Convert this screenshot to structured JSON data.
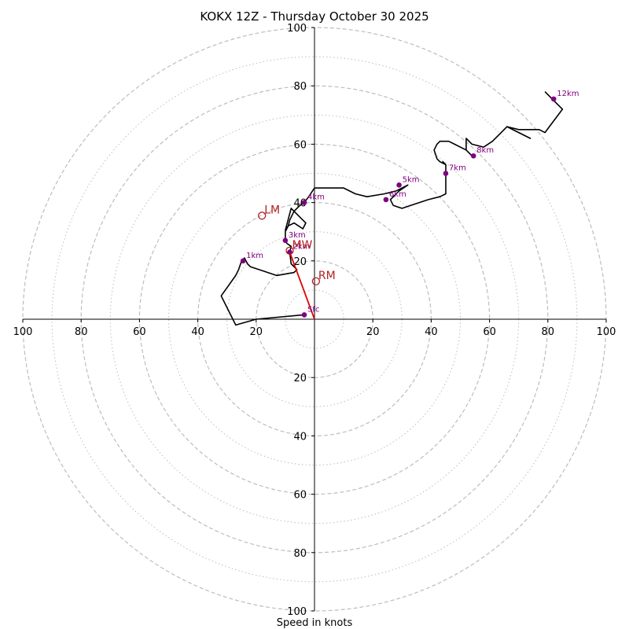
{
  "chart_data": {
    "type": "hodograph",
    "title": "KOKX 12Z - Thursday October 30 2025",
    "xlabel": "Speed in knots",
    "units": "knots",
    "range": [
      -100,
      100
    ],
    "ring_major": [
      20,
      40,
      60,
      80,
      100
    ],
    "ring_minor": [
      10,
      30,
      50,
      70,
      90
    ],
    "x_tick_labels": [
      "100",
      "80",
      "60",
      "40",
      "20",
      "20",
      "40",
      "60",
      "80",
      "100"
    ],
    "x_tick_values": [
      -100,
      -80,
      -60,
      -40,
      -20,
      20,
      40,
      60,
      80,
      100
    ],
    "y_tick_labels": [
      "100",
      "80",
      "60",
      "40",
      "20",
      "20",
      "40",
      "60",
      "80",
      "100"
    ],
    "y_tick_values": [
      100,
      80,
      60,
      40,
      20,
      -20,
      -40,
      -60,
      -80,
      -100
    ],
    "trace": [
      [
        -3.5,
        1.5
      ],
      [
        -20,
        0
      ],
      [
        -27,
        -2
      ],
      [
        -32,
        8
      ],
      [
        -27,
        15
      ],
      [
        -26,
        17
      ],
      [
        -25,
        20
      ],
      [
        -24,
        21
      ],
      [
        -23,
        19
      ],
      [
        -22,
        18
      ],
      [
        -19,
        17
      ],
      [
        -13,
        15
      ],
      [
        -7,
        16
      ],
      [
        -6,
        17
      ],
      [
        -8,
        19
      ],
      [
        -8.5,
        23
      ],
      [
        -8,
        25
      ],
      [
        -9.5,
        26
      ],
      [
        -10,
        27
      ],
      [
        -10,
        30
      ],
      [
        -9,
        32
      ],
      [
        -7,
        33
      ],
      [
        -4,
        31
      ],
      [
        -3,
        33
      ],
      [
        -4,
        34
      ],
      [
        -6,
        36
      ],
      [
        -8,
        38
      ],
      [
        -10,
        30.5
      ],
      [
        -9,
        32
      ],
      [
        -8.5,
        34
      ],
      [
        -7,
        37
      ],
      [
        -5,
        39
      ],
      [
        -3.5,
        40
      ],
      [
        -2,
        42
      ],
      [
        0,
        45
      ],
      [
        5,
        45
      ],
      [
        10,
        45
      ],
      [
        14,
        43
      ],
      [
        18,
        42
      ],
      [
        24,
        43
      ],
      [
        28,
        44
      ],
      [
        30,
        45
      ],
      [
        32,
        46
      ],
      [
        29,
        44
      ],
      [
        26,
        41
      ],
      [
        27,
        39
      ],
      [
        30,
        38
      ],
      [
        33,
        39
      ],
      [
        39,
        41
      ],
      [
        43,
        42
      ],
      [
        45,
        43
      ],
      [
        45,
        48
      ],
      [
        45,
        50
      ],
      [
        45,
        53
      ],
      [
        44,
        54
      ],
      [
        45,
        53
      ],
      [
        43,
        54
      ],
      [
        42,
        55
      ],
      [
        41,
        58
      ],
      [
        42,
        60
      ],
      [
        43,
        61
      ],
      [
        46,
        61
      ],
      [
        48,
        60
      ],
      [
        52,
        58
      ],
      [
        54,
        56
      ],
      [
        52,
        58
      ],
      [
        52,
        62
      ],
      [
        54,
        60
      ],
      [
        58,
        59
      ],
      [
        61,
        61
      ],
      [
        66,
        66
      ],
      [
        70,
        64
      ],
      [
        74,
        62
      ],
      [
        66,
        66
      ],
      [
        70,
        65
      ],
      [
        75,
        65
      ],
      [
        77,
        65
      ],
      [
        79,
        64
      ],
      [
        85,
        72
      ],
      [
        82,
        75
      ],
      [
        79,
        78
      ]
    ],
    "heights": [
      {
        "label": "Sfc",
        "u": -3.5,
        "v": 1.5
      },
      {
        "label": "1km",
        "u": -24.5,
        "v": 20
      },
      {
        "label": "2km",
        "u": -8.5,
        "v": 23
      },
      {
        "label": "3km",
        "u": -10,
        "v": 27
      },
      {
        "label": "4km",
        "u": -3.5,
        "v": 40
      },
      {
        "label": "5km",
        "u": 29,
        "v": 46
      },
      {
        "label": "6km",
        "u": 24.5,
        "v": 41
      },
      {
        "label": "7km",
        "u": 45,
        "v": 50
      },
      {
        "label": "8km",
        "u": 54.5,
        "v": 56
      },
      {
        "label": "12km",
        "u": 82,
        "v": 75.5
      }
    ],
    "motions": [
      {
        "label": "LM",
        "u": -18,
        "v": 35.5
      },
      {
        "label": "MW",
        "u": -8.5,
        "v": 23.5
      },
      {
        "label": "RM",
        "u": 0.5,
        "v": 13
      }
    ],
    "shear_vector": {
      "from": [
        0,
        0
      ],
      "to": [
        -8.5,
        23
      ]
    },
    "colors": {
      "trace": "#000000",
      "height_points": "#800080",
      "height_labels": "#800080",
      "motion": "#b22222",
      "shear": "#e00000",
      "grid": "#bdbdbd",
      "axis": "#000000"
    }
  }
}
